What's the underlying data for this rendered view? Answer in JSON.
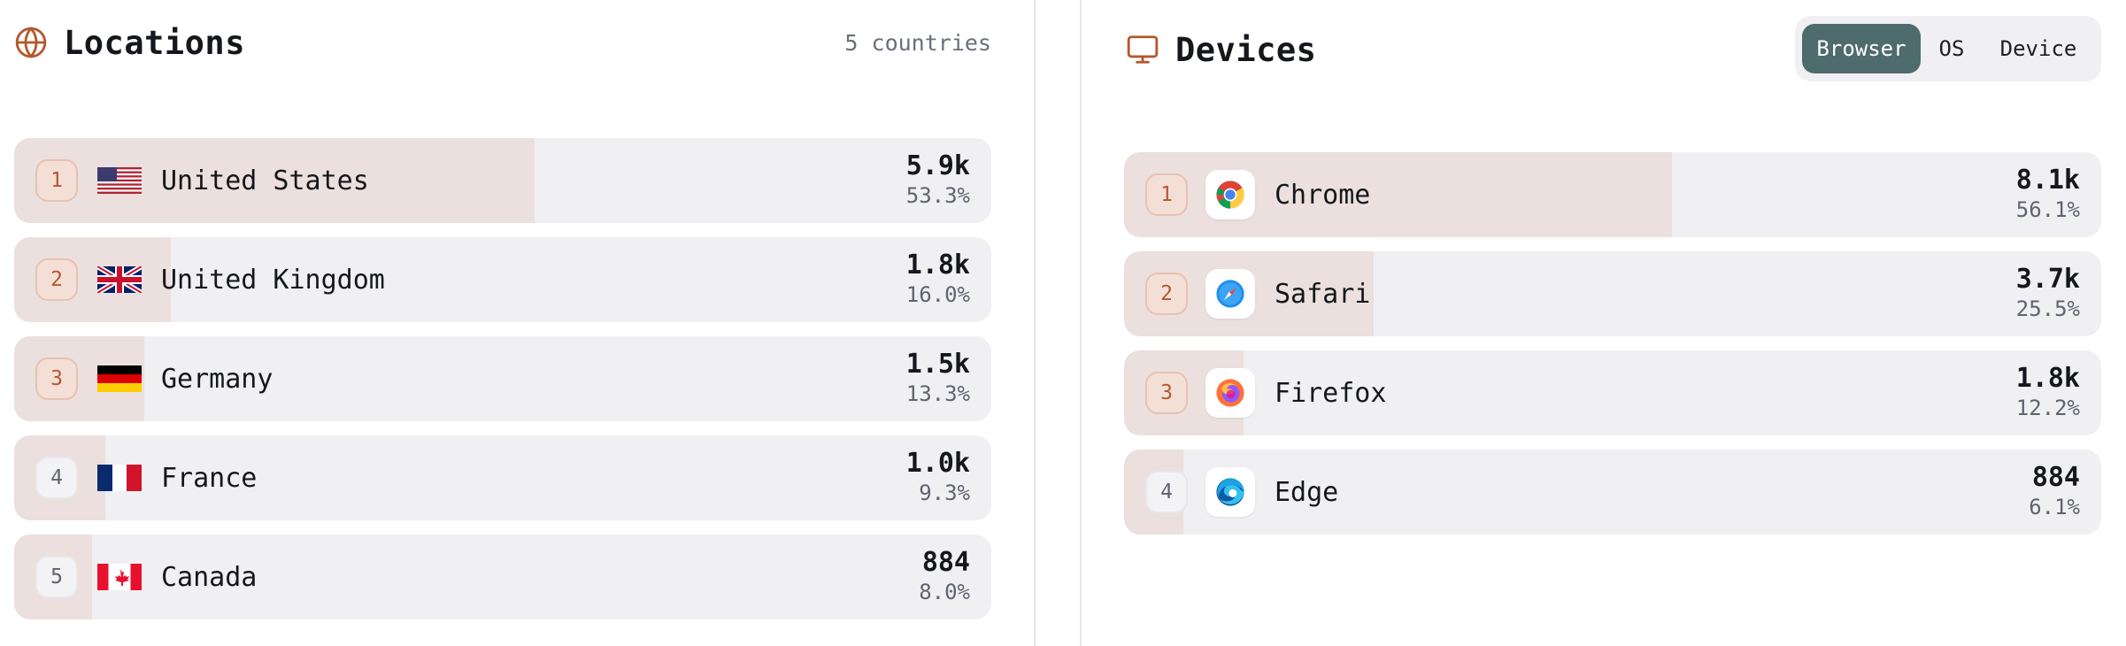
{
  "locations": {
    "title": "Locations",
    "count_label": "5 countries",
    "icon": "globe-icon",
    "accent": "#b4582e",
    "items": [
      {
        "rank": "1",
        "name": "United States",
        "count": "5.9k",
        "percent": "53.3%",
        "share": 0.533,
        "flag": "us-flag-icon"
      },
      {
        "rank": "2",
        "name": "United Kingdom",
        "count": "1.8k",
        "percent": "16.0%",
        "share": 0.16,
        "flag": "uk-flag-icon"
      },
      {
        "rank": "3",
        "name": "Germany",
        "count": "1.5k",
        "percent": "13.3%",
        "share": 0.133,
        "flag": "germany-flag-icon"
      },
      {
        "rank": "4",
        "name": "France",
        "count": "1.0k",
        "percent": "9.3%",
        "share": 0.093,
        "flag": "france-flag-icon"
      },
      {
        "rank": "5",
        "name": "Canada",
        "count": "884",
        "percent": "8.0%",
        "share": 0.08,
        "flag": "canada-flag-icon"
      }
    ]
  },
  "devices": {
    "title": "Devices",
    "icon": "monitor-icon",
    "tabs": [
      {
        "label": "Browser",
        "active": true
      },
      {
        "label": "OS",
        "active": false
      },
      {
        "label": "Device",
        "active": false
      }
    ],
    "active_tab_color": "#4e6b6d",
    "items": [
      {
        "rank": "1",
        "name": "Chrome",
        "count": "8.1k",
        "percent": "56.1%",
        "share": 0.561,
        "icon": "chrome-icon"
      },
      {
        "rank": "2",
        "name": "Safari",
        "count": "3.7k",
        "percent": "25.5%",
        "share": 0.255,
        "icon": "safari-icon"
      },
      {
        "rank": "3",
        "name": "Firefox",
        "count": "1.8k",
        "percent": "12.2%",
        "share": 0.122,
        "icon": "firefox-icon"
      },
      {
        "rank": "4",
        "name": "Edge",
        "count": "884",
        "percent": "6.1%",
        "share": 0.061,
        "icon": "edge-icon"
      }
    ]
  }
}
